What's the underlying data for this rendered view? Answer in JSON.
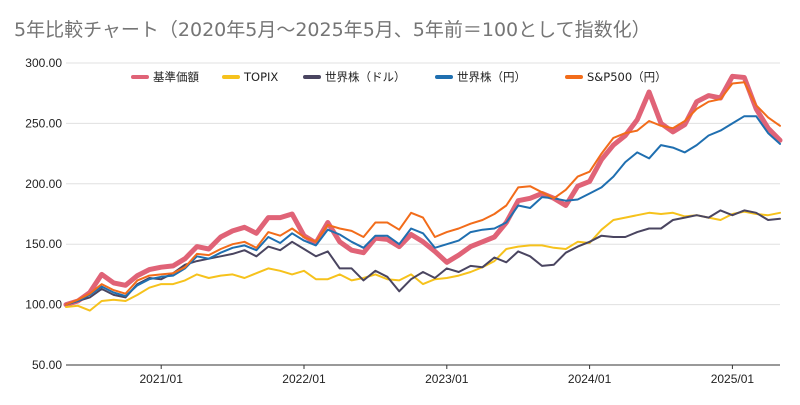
{
  "chart_data": {
    "type": "line",
    "title": "5年比較チャート（2020年5月〜2025年5月、5年前＝100として指数化）",
    "xlabel": "",
    "ylabel": "",
    "ylim": [
      50,
      300
    ],
    "y_ticks": [
      "50.00",
      "100.00",
      "150.00",
      "200.00",
      "250.00",
      "300.00"
    ],
    "x_ticks": [
      "2021/01",
      "2022/01",
      "2023/01",
      "2024/01",
      "2025/01"
    ],
    "x_tick_index": [
      8,
      20,
      32,
      44,
      56
    ],
    "grid": "horizontal",
    "legend_position": "top",
    "x": [
      "2020/05",
      "2020/06",
      "2020/07",
      "2020/08",
      "2020/09",
      "2020/10",
      "2020/11",
      "2020/12",
      "2021/01",
      "2021/02",
      "2021/03",
      "2021/04",
      "2021/05",
      "2021/06",
      "2021/07",
      "2021/08",
      "2021/09",
      "2021/10",
      "2021/11",
      "2021/12",
      "2022/01",
      "2022/02",
      "2022/03",
      "2022/04",
      "2022/05",
      "2022/06",
      "2022/07",
      "2022/08",
      "2022/09",
      "2022/10",
      "2022/11",
      "2022/12",
      "2023/01",
      "2023/02",
      "2023/03",
      "2023/04",
      "2023/05",
      "2023/06",
      "2023/07",
      "2023/08",
      "2023/09",
      "2023/10",
      "2023/11",
      "2023/12",
      "2024/01",
      "2024/02",
      "2024/03",
      "2024/04",
      "2024/05",
      "2024/06",
      "2024/07",
      "2024/08",
      "2024/09",
      "2024/10",
      "2024/11",
      "2024/12",
      "2025/01",
      "2025/02",
      "2025/03",
      "2025/04",
      "2025/05"
    ],
    "series": [
      {
        "name": "基準価額",
        "color": "#e06377",
        "width": 5,
        "values": [
          100,
          103,
          110,
          125,
          118,
          116,
          124,
          129,
          131,
          132,
          138,
          148,
          146,
          156,
          161,
          164,
          159,
          172,
          172,
          175,
          157,
          151,
          168,
          152,
          145,
          143,
          155,
          154,
          148,
          158,
          152,
          144,
          135,
          141,
          148,
          152,
          156,
          168,
          186,
          188,
          192,
          188,
          182,
          198,
          202,
          220,
          232,
          240,
          253,
          276,
          250,
          243,
          249,
          268,
          273,
          271,
          289,
          288,
          262,
          246,
          236
        ]
      },
      {
        "name": "TOPIX",
        "color": "#f6c21c",
        "width": 2,
        "values": [
          98,
          99,
          95,
          103,
          104,
          103,
          108,
          114,
          117,
          117,
          120,
          125,
          122,
          124,
          125,
          122,
          126,
          130,
          128,
          125,
          128,
          121,
          121,
          125,
          120,
          122,
          125,
          121,
          120,
          125,
          117,
          121,
          122,
          124,
          127,
          131,
          136,
          146,
          148,
          149,
          149,
          147,
          146,
          152,
          151,
          162,
          170,
          172,
          174,
          176,
          175,
          176,
          173,
          174,
          172,
          170,
          175,
          177,
          175,
          174,
          176
        ]
      },
      {
        "name": "世界株（ドル）",
        "color": "#4a4560",
        "width": 2,
        "values": [
          100,
          103,
          106,
          113,
          108,
          106,
          117,
          122,
          121,
          126,
          133,
          136,
          138,
          140,
          142,
          145,
          140,
          148,
          145,
          152,
          146,
          140,
          144,
          130,
          130,
          120,
          128,
          123,
          111,
          121,
          127,
          122,
          130,
          127,
          132,
          131,
          139,
          135,
          144,
          140,
          132,
          133,
          143,
          148,
          152,
          157,
          156,
          156,
          160,
          163,
          163,
          170,
          172,
          174,
          172,
          178,
          174,
          178,
          176,
          170,
          171
        ]
      },
      {
        "name": "世界株（円）",
        "color": "#1f6fb0",
        "width": 2,
        "values": [
          100,
          103,
          108,
          115,
          110,
          107,
          116,
          121,
          123,
          124,
          130,
          140,
          138,
          143,
          147,
          149,
          145,
          156,
          151,
          159,
          153,
          149,
          162,
          158,
          152,
          147,
          157,
          157,
          150,
          163,
          159,
          147,
          150,
          153,
          160,
          162,
          163,
          168,
          182,
          180,
          189,
          188,
          186,
          187,
          192,
          197,
          206,
          218,
          226,
          221,
          232,
          230,
          226,
          232,
          240,
          244,
          250,
          256,
          256,
          242,
          233
        ]
      },
      {
        "name": "S&P500（円）",
        "color": "#f26c1a",
        "width": 2,
        "values": [
          100,
          104,
          109,
          117,
          112,
          109,
          120,
          124,
          125,
          126,
          131,
          142,
          141,
          146,
          150,
          152,
          147,
          160,
          157,
          163,
          156,
          152,
          166,
          163,
          161,
          156,
          168,
          168,
          162,
          176,
          172,
          156,
          160,
          163,
          167,
          170,
          175,
          182,
          197,
          198,
          193,
          188,
          195,
          206,
          210,
          225,
          238,
          242,
          244,
          252,
          248,
          246,
          252,
          262,
          268,
          270,
          283,
          284,
          265,
          255,
          248
        ]
      }
    ]
  }
}
